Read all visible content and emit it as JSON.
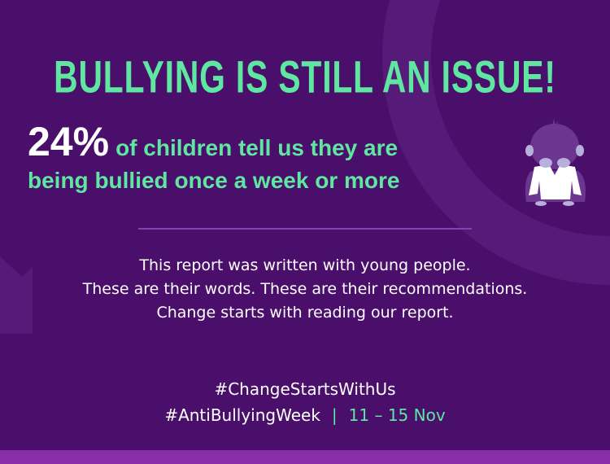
{
  "headline": "BULLYING IS STILL AN ISSUE!",
  "stat": {
    "value": "24%",
    "line1": "of children tell us they are",
    "line2": "being bullied once a week or more"
  },
  "body": [
    "This report was written with young people.",
    "These are their words. These are their recommendations.",
    "Change starts with reading our report."
  ],
  "hashtags": {
    "first": "#ChangeStartsWithUs",
    "second": "#AntiBullyingWeek",
    "separator": "|",
    "dates": "11 – 15 Nov"
  },
  "colors": {
    "background": "#4a0f6a",
    "accent": "#5fe6a0",
    "stripe": "#8a2ea8"
  }
}
